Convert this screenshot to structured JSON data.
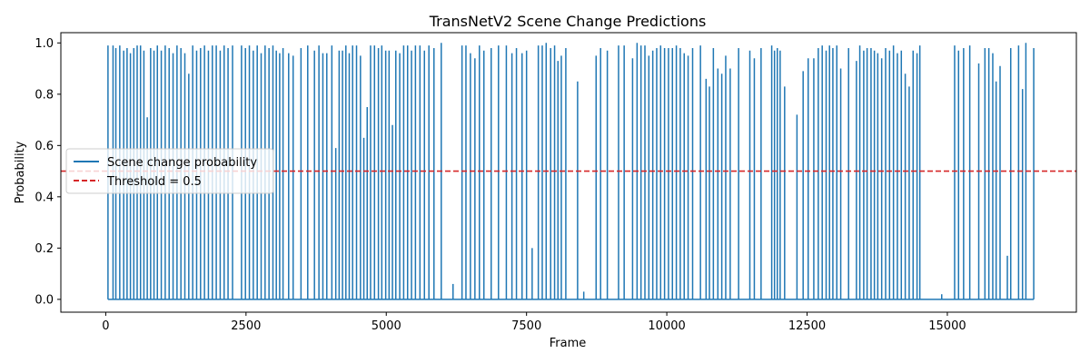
{
  "chart_data": {
    "type": "line",
    "title": "TransNetV2 Scene Change Predictions",
    "xlabel": "Frame",
    "ylabel": "Probability",
    "xlim": [
      -800,
      17300
    ],
    "ylim": [
      -0.05,
      1.04
    ],
    "xticks": [
      0,
      2500,
      5000,
      7500,
      10000,
      12500,
      15000
    ],
    "xtick_labels": [
      "0",
      "2500",
      "5000",
      "7500",
      "10000",
      "12500",
      "15000"
    ],
    "yticks": [
      0.0,
      0.2,
      0.4,
      0.6,
      0.8,
      1.0
    ],
    "ytick_labels": [
      "0.0",
      "0.2",
      "0.4",
      "0.6",
      "0.8",
      "1.0"
    ],
    "grid": false,
    "legend": {
      "placement": "center-left"
    },
    "threshold": {
      "name": "Threshold = 0.5",
      "value": 0.5,
      "color": "#d62728",
      "style": "dashed"
    },
    "series": [
      {
        "name": "Scene change probability",
        "color": "#1f77b4",
        "spikes": [
          {
            "x": 40,
            "y": 0.99
          },
          {
            "x": 130,
            "y": 0.99
          },
          {
            "x": 180,
            "y": 0.98
          },
          {
            "x": 250,
            "y": 0.99
          },
          {
            "x": 320,
            "y": 0.97
          },
          {
            "x": 380,
            "y": 0.98
          },
          {
            "x": 440,
            "y": 0.96
          },
          {
            "x": 500,
            "y": 0.98
          },
          {
            "x": 560,
            "y": 0.99
          },
          {
            "x": 620,
            "y": 0.99
          },
          {
            "x": 680,
            "y": 0.97
          },
          {
            "x": 740,
            "y": 0.71
          },
          {
            "x": 800,
            "y": 0.98
          },
          {
            "x": 860,
            "y": 0.97
          },
          {
            "x": 920,
            "y": 0.99
          },
          {
            "x": 990,
            "y": 0.97
          },
          {
            "x": 1060,
            "y": 0.99
          },
          {
            "x": 1130,
            "y": 0.98
          },
          {
            "x": 1200,
            "y": 0.96
          },
          {
            "x": 1270,
            "y": 0.99
          },
          {
            "x": 1340,
            "y": 0.98
          },
          {
            "x": 1410,
            "y": 0.96
          },
          {
            "x": 1480,
            "y": 0.88
          },
          {
            "x": 1550,
            "y": 0.99
          },
          {
            "x": 1620,
            "y": 0.97
          },
          {
            "x": 1690,
            "y": 0.98
          },
          {
            "x": 1760,
            "y": 0.99
          },
          {
            "x": 1830,
            "y": 0.97
          },
          {
            "x": 1900,
            "y": 0.99
          },
          {
            "x": 1970,
            "y": 0.99
          },
          {
            "x": 2040,
            "y": 0.97
          },
          {
            "x": 2110,
            "y": 0.99
          },
          {
            "x": 2180,
            "y": 0.98
          },
          {
            "x": 2260,
            "y": 0.99
          },
          {
            "x": 2420,
            "y": 0.99
          },
          {
            "x": 2490,
            "y": 0.98
          },
          {
            "x": 2560,
            "y": 0.99
          },
          {
            "x": 2630,
            "y": 0.97
          },
          {
            "x": 2700,
            "y": 0.99
          },
          {
            "x": 2770,
            "y": 0.96
          },
          {
            "x": 2840,
            "y": 0.99
          },
          {
            "x": 2910,
            "y": 0.98
          },
          {
            "x": 2980,
            "y": 0.99
          },
          {
            "x": 3040,
            "y": 0.97
          },
          {
            "x": 3100,
            "y": 0.96
          },
          {
            "x": 3160,
            "y": 0.98
          },
          {
            "x": 3260,
            "y": 0.96
          },
          {
            "x": 3340,
            "y": 0.95
          },
          {
            "x": 3480,
            "y": 0.98
          },
          {
            "x": 3600,
            "y": 0.99
          },
          {
            "x": 3720,
            "y": 0.97
          },
          {
            "x": 3800,
            "y": 0.99
          },
          {
            "x": 3870,
            "y": 0.96
          },
          {
            "x": 3940,
            "y": 0.96
          },
          {
            "x": 4030,
            "y": 0.99
          },
          {
            "x": 4100,
            "y": 0.59
          },
          {
            "x": 4160,
            "y": 0.97
          },
          {
            "x": 4220,
            "y": 0.97
          },
          {
            "x": 4280,
            "y": 0.99
          },
          {
            "x": 4340,
            "y": 0.96
          },
          {
            "x": 4400,
            "y": 0.99
          },
          {
            "x": 4470,
            "y": 0.99
          },
          {
            "x": 4540,
            "y": 0.95
          },
          {
            "x": 4600,
            "y": 0.63
          },
          {
            "x": 4660,
            "y": 0.75
          },
          {
            "x": 4720,
            "y": 0.99
          },
          {
            "x": 4790,
            "y": 0.99
          },
          {
            "x": 4860,
            "y": 0.98
          },
          {
            "x": 4920,
            "y": 0.99
          },
          {
            "x": 4990,
            "y": 0.97
          },
          {
            "x": 5050,
            "y": 0.97
          },
          {
            "x": 5110,
            "y": 0.68
          },
          {
            "x": 5170,
            "y": 0.97
          },
          {
            "x": 5240,
            "y": 0.96
          },
          {
            "x": 5310,
            "y": 0.99
          },
          {
            "x": 5380,
            "y": 0.99
          },
          {
            "x": 5450,
            "y": 0.97
          },
          {
            "x": 5520,
            "y": 0.99
          },
          {
            "x": 5600,
            "y": 0.99
          },
          {
            "x": 5680,
            "y": 0.97
          },
          {
            "x": 5760,
            "y": 0.99
          },
          {
            "x": 5850,
            "y": 0.98
          },
          {
            "x": 5980,
            "y": 1.0
          },
          {
            "x": 6190,
            "y": 0.06
          },
          {
            "x": 6350,
            "y": 0.99
          },
          {
            "x": 6420,
            "y": 0.99
          },
          {
            "x": 6500,
            "y": 0.96
          },
          {
            "x": 6580,
            "y": 0.94
          },
          {
            "x": 6660,
            "y": 0.99
          },
          {
            "x": 6740,
            "y": 0.97
          },
          {
            "x": 6870,
            "y": 0.98
          },
          {
            "x": 7000,
            "y": 0.99
          },
          {
            "x": 7140,
            "y": 0.99
          },
          {
            "x": 7240,
            "y": 0.96
          },
          {
            "x": 7320,
            "y": 0.98
          },
          {
            "x": 7420,
            "y": 0.96
          },
          {
            "x": 7500,
            "y": 0.97
          },
          {
            "x": 7600,
            "y": 0.2
          },
          {
            "x": 7710,
            "y": 0.99
          },
          {
            "x": 7780,
            "y": 0.99
          },
          {
            "x": 7850,
            "y": 1.0
          },
          {
            "x": 7930,
            "y": 0.98
          },
          {
            "x": 8000,
            "y": 0.99
          },
          {
            "x": 8060,
            "y": 0.93
          },
          {
            "x": 8120,
            "y": 0.95
          },
          {
            "x": 8200,
            "y": 0.98
          },
          {
            "x": 8410,
            "y": 0.85
          },
          {
            "x": 8520,
            "y": 0.03
          },
          {
            "x": 8740,
            "y": 0.95
          },
          {
            "x": 8820,
            "y": 0.98
          },
          {
            "x": 8940,
            "y": 0.97
          },
          {
            "x": 9140,
            "y": 0.99
          },
          {
            "x": 9240,
            "y": 0.99
          },
          {
            "x": 9390,
            "y": 0.94
          },
          {
            "x": 9470,
            "y": 1.0
          },
          {
            "x": 9540,
            "y": 0.99
          },
          {
            "x": 9610,
            "y": 0.99
          },
          {
            "x": 9680,
            "y": 0.95
          },
          {
            "x": 9750,
            "y": 0.97
          },
          {
            "x": 9820,
            "y": 0.98
          },
          {
            "x": 9890,
            "y": 0.99
          },
          {
            "x": 9960,
            "y": 0.98
          },
          {
            "x": 10030,
            "y": 0.98
          },
          {
            "x": 10100,
            "y": 0.98
          },
          {
            "x": 10170,
            "y": 0.99
          },
          {
            "x": 10240,
            "y": 0.98
          },
          {
            "x": 10310,
            "y": 0.96
          },
          {
            "x": 10380,
            "y": 0.95
          },
          {
            "x": 10460,
            "y": 0.98
          },
          {
            "x": 10600,
            "y": 0.99
          },
          {
            "x": 10700,
            "y": 0.86
          },
          {
            "x": 10760,
            "y": 0.83
          },
          {
            "x": 10830,
            "y": 0.98
          },
          {
            "x": 10910,
            "y": 0.9
          },
          {
            "x": 10980,
            "y": 0.88
          },
          {
            "x": 11050,
            "y": 0.95
          },
          {
            "x": 11130,
            "y": 0.9
          },
          {
            "x": 11280,
            "y": 0.98
          },
          {
            "x": 11480,
            "y": 0.97
          },
          {
            "x": 11560,
            "y": 0.94
          },
          {
            "x": 11680,
            "y": 0.98
          },
          {
            "x": 11870,
            "y": 0.99
          },
          {
            "x": 11920,
            "y": 0.97
          },
          {
            "x": 11970,
            "y": 0.98
          },
          {
            "x": 12020,
            "y": 0.97
          },
          {
            "x": 12100,
            "y": 0.83
          },
          {
            "x": 12320,
            "y": 0.72
          },
          {
            "x": 12430,
            "y": 0.89
          },
          {
            "x": 12520,
            "y": 0.94
          },
          {
            "x": 12620,
            "y": 0.94
          },
          {
            "x": 12700,
            "y": 0.98
          },
          {
            "x": 12770,
            "y": 0.99
          },
          {
            "x": 12840,
            "y": 0.97
          },
          {
            "x": 12900,
            "y": 0.99
          },
          {
            "x": 12960,
            "y": 0.98
          },
          {
            "x": 13030,
            "y": 0.99
          },
          {
            "x": 13100,
            "y": 0.9
          },
          {
            "x": 13240,
            "y": 0.98
          },
          {
            "x": 13380,
            "y": 0.93
          },
          {
            "x": 13440,
            "y": 0.99
          },
          {
            "x": 13510,
            "y": 0.97
          },
          {
            "x": 13570,
            "y": 0.98
          },
          {
            "x": 13640,
            "y": 0.98
          },
          {
            "x": 13700,
            "y": 0.97
          },
          {
            "x": 13760,
            "y": 0.96
          },
          {
            "x": 13830,
            "y": 0.94
          },
          {
            "x": 13900,
            "y": 0.98
          },
          {
            "x": 13970,
            "y": 0.97
          },
          {
            "x": 14040,
            "y": 0.99
          },
          {
            "x": 14110,
            "y": 0.96
          },
          {
            "x": 14180,
            "y": 0.97
          },
          {
            "x": 14250,
            "y": 0.88
          },
          {
            "x": 14320,
            "y": 0.83
          },
          {
            "x": 14390,
            "y": 0.97
          },
          {
            "x": 14460,
            "y": 0.96
          },
          {
            "x": 14510,
            "y": 0.99
          },
          {
            "x": 14900,
            "y": 0.02
          },
          {
            "x": 15130,
            "y": 0.99
          },
          {
            "x": 15200,
            "y": 0.97
          },
          {
            "x": 15290,
            "y": 0.98
          },
          {
            "x": 15400,
            "y": 0.99
          },
          {
            "x": 15560,
            "y": 0.92
          },
          {
            "x": 15670,
            "y": 0.98
          },
          {
            "x": 15740,
            "y": 0.98
          },
          {
            "x": 15810,
            "y": 0.96
          },
          {
            "x": 15870,
            "y": 0.85
          },
          {
            "x": 15940,
            "y": 0.91
          },
          {
            "x": 16070,
            "y": 0.17
          },
          {
            "x": 16130,
            "y": 0.98
          },
          {
            "x": 16270,
            "y": 0.99
          },
          {
            "x": 16340,
            "y": 0.82
          },
          {
            "x": 16400,
            "y": 1.0
          },
          {
            "x": 16540,
            "y": 0.98
          }
        ]
      }
    ]
  }
}
